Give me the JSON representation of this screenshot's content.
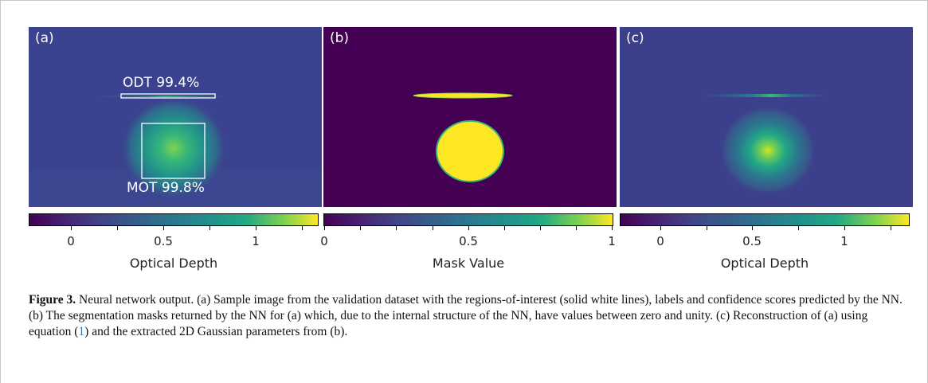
{
  "panels": [
    {
      "label": "(a)",
      "roi_labels": [
        {
          "text": "ODT 99.4%"
        },
        {
          "text": "MOT 99.8%"
        }
      ]
    },
    {
      "label": "(b)"
    },
    {
      "label": "(c)"
    }
  ],
  "colorbars": [
    {
      "title": "Optical Depth",
      "ticks": [
        "0",
        "0.5",
        "1"
      ],
      "colormap": "viridis"
    },
    {
      "title": "Mask Value",
      "ticks": [
        "0",
        "0.5",
        "1"
      ],
      "colormap": "viridis"
    },
    {
      "title": "Optical Depth",
      "ticks": [
        "0",
        "0.5",
        "1"
      ],
      "colormap": "viridis"
    }
  ],
  "caption": {
    "figure_label": "Figure 3.",
    "text_1": " Neural network output. (a) Sample image from the validation dataset with the regions-of-interest (solid white lines), labels and confidence scores predicted by the NN. (b) The segmentation masks returned by the NN for (a) which, due to the internal structure of the NN, have values between zero and unity. (c) Reconstruction of (a) using equation (",
    "eq_ref": "1",
    "text_2": ") and the extracted 2D Gaussian parameters from (b)."
  },
  "colors": {
    "viridis_low": "#440154",
    "viridis_bg": "#3b3f8c",
    "viridis_mid": "#21918c",
    "viridis_high": "#fde725",
    "link": "#2b7bbd"
  }
}
